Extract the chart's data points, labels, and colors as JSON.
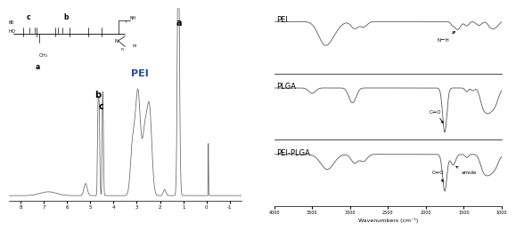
{
  "fig_width": 5.67,
  "fig_height": 2.41,
  "nmr_color": "#666666",
  "ir_color": "#555555",
  "pei_label": "PEI",
  "plga_label": "PLGA",
  "pei_plga_label": "PEI-PLGA",
  "nmr_annotation_a": "a",
  "nmr_annotation_b": "b",
  "nmr_annotation_c": "c",
  "nmr_annotation_pei": "PEI",
  "ir_annotation_nh": "N－H",
  "ir_annotation_co1": "C＝O",
  "ir_annotation_co2": "C＝O",
  "ir_annotation_amide": "amide",
  "ir_xlabel": "Wavenumbers (cm⁻¹)",
  "nmr_xticks": [
    8,
    7,
    6,
    5,
    4,
    3,
    2,
    1,
    0,
    -1
  ],
  "nmr_xticklabels": [
    "8",
    "7",
    "6",
    "5",
    "4",
    "3",
    "2",
    "1",
    "0",
    "-1"
  ],
  "ir_xticks": [
    4000,
    3500,
    3000,
    2500,
    2000,
    1500,
    1000
  ],
  "ir_xticklabels": [
    "4000",
    "3500",
    "3000",
    "2500",
    "2000",
    "1500",
    "1000"
  ]
}
